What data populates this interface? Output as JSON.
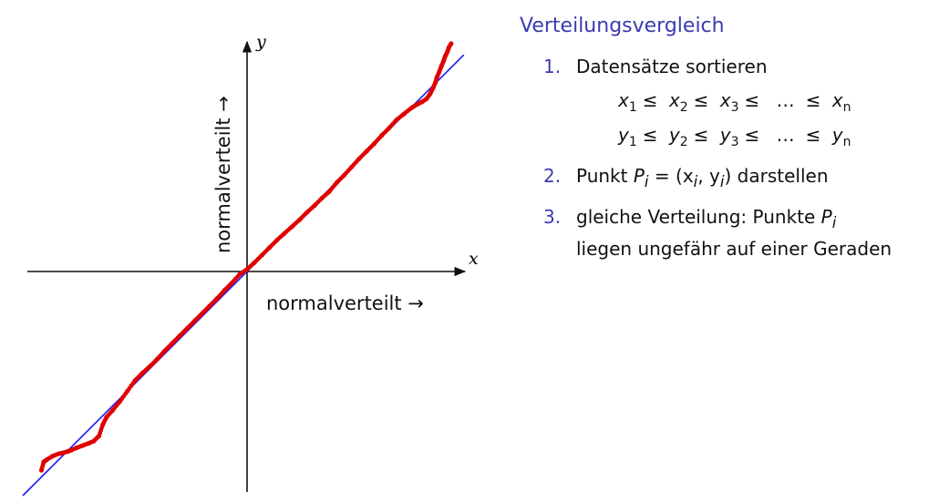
{
  "panel": {
    "title": "Verteilungsvergleich",
    "items": [
      {
        "number": "1.",
        "text": "Datensätze sortieren"
      },
      {
        "number": "2.",
        "text_before": "Punkt ",
        "math": "P",
        "math_sub": "i",
        "text_after": " = (x",
        "text_tail": "i",
        "text_tail2": ", y",
        "text_tail3": "i",
        "text_end": ") darstellen"
      },
      {
        "number": "3.",
        "line1_before": "gleiche Verteilung: Punkte ",
        "line1_math": "P",
        "line1_sub": "i",
        "line2": "liegen ungefähr auf einer Geraden"
      }
    ],
    "equations": {
      "x_row": [
        "x",
        "1",
        "x",
        "2",
        "x",
        "3",
        "x",
        "n"
      ],
      "y_row": [
        "y",
        "1",
        "y",
        "2",
        "y",
        "3",
        "y",
        "n"
      ],
      "leq": "≤",
      "dots": "…"
    }
  },
  "chart_data": {
    "type": "scatter",
    "x_axis_letter": "x",
    "y_axis_letter": "y",
    "xlabel": "normalverteilt →",
    "ylabel": "normalverteilt →",
    "reference_line": {
      "color": "#1a1aff",
      "from": [
        -3.0,
        -3.0
      ],
      "to": [
        2.9,
        2.9
      ]
    },
    "point_color": "#e00000",
    "line_color": "#1a1aff",
    "points": [
      [
        -2.75,
        -2.66
      ],
      [
        -2.72,
        -2.55
      ],
      [
        -2.68,
        -2.52
      ],
      [
        -2.6,
        -2.47
      ],
      [
        -2.52,
        -2.44
      ],
      [
        -2.47,
        -2.43
      ],
      [
        -2.4,
        -2.41
      ],
      [
        -2.35,
        -2.39
      ],
      [
        -2.28,
        -2.36
      ],
      [
        -2.2,
        -2.33
      ],
      [
        -2.12,
        -2.3
      ],
      [
        -2.05,
        -2.27
      ],
      [
        -1.98,
        -2.2
      ],
      [
        -1.93,
        -2.05
      ],
      [
        -1.88,
        -1.95
      ],
      [
        -1.8,
        -1.86
      ],
      [
        -1.7,
        -1.74
      ],
      [
        -1.6,
        -1.6
      ],
      [
        -1.5,
        -1.46
      ],
      [
        -1.4,
        -1.36
      ],
      [
        -1.3,
        -1.27
      ],
      [
        -1.2,
        -1.17
      ],
      [
        -1.1,
        -1.06
      ],
      [
        -1.0,
        -0.96
      ],
      [
        -0.9,
        -0.86
      ],
      [
        -0.8,
        -0.76
      ],
      [
        -0.7,
        -0.66
      ],
      [
        -0.6,
        -0.56
      ],
      [
        -0.5,
        -0.46
      ],
      [
        -0.4,
        -0.36
      ],
      [
        -0.3,
        -0.25
      ],
      [
        -0.2,
        -0.15
      ],
      [
        -0.1,
        -0.04
      ],
      [
        0.0,
        0.03
      ],
      [
        0.1,
        0.12
      ],
      [
        0.2,
        0.22
      ],
      [
        0.3,
        0.32
      ],
      [
        0.4,
        0.42
      ],
      [
        0.5,
        0.51
      ],
      [
        0.6,
        0.6
      ],
      [
        0.7,
        0.69
      ],
      [
        0.8,
        0.79
      ],
      [
        0.9,
        0.88
      ],
      [
        1.0,
        0.98
      ],
      [
        1.1,
        1.07
      ],
      [
        1.2,
        1.19
      ],
      [
        1.3,
        1.29
      ],
      [
        1.4,
        1.4
      ],
      [
        1.5,
        1.51
      ],
      [
        1.6,
        1.61
      ],
      [
        1.7,
        1.71
      ],
      [
        1.8,
        1.82
      ],
      [
        1.9,
        1.92
      ],
      [
        2.0,
        2.03
      ],
      [
        2.1,
        2.11
      ],
      [
        2.2,
        2.19
      ],
      [
        2.28,
        2.24
      ],
      [
        2.34,
        2.27
      ],
      [
        2.4,
        2.31
      ],
      [
        2.45,
        2.38
      ],
      [
        2.49,
        2.46
      ],
      [
        2.52,
        2.53
      ],
      [
        2.54,
        2.6
      ],
      [
        2.57,
        2.67
      ],
      [
        2.6,
        2.75
      ],
      [
        2.63,
        2.82
      ],
      [
        2.65,
        2.88
      ],
      [
        2.68,
        2.94
      ],
      [
        2.7,
        3.0
      ],
      [
        2.73,
        3.05
      ]
    ]
  }
}
